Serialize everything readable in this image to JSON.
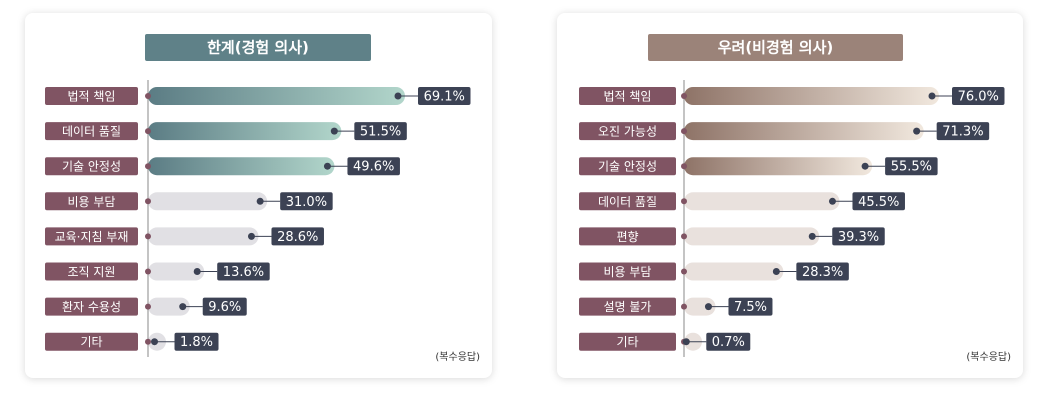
{
  "chart_data": [
    {
      "type": "bar",
      "orientation": "horizontal",
      "title": "한계(경험 의사)",
      "title_color": "#5f8188",
      "categories": [
        "법적 책임",
        "데이터 품질",
        "기술 안정성",
        "비용 부담",
        "교육·지침 부재",
        "조직 지원",
        "환자 수용성",
        "기타"
      ],
      "values": [
        69.1,
        51.5,
        49.6,
        31.0,
        28.6,
        13.6,
        9.6,
        1.8
      ],
      "value_labels": [
        "69.1%",
        "51.5%",
        "49.6%",
        "31.0%",
        "28.6%",
        "13.6%",
        "9.6%",
        "1.8%"
      ],
      "highlight": [
        true,
        true,
        true,
        false,
        false,
        false,
        false,
        false
      ],
      "highlight_colors": [
        "#5b7c84",
        "#b2d6cb"
      ],
      "color": "#e1e0e4",
      "label_color": "#805463",
      "note": "(복수응답)"
    },
    {
      "type": "bar",
      "orientation": "horizontal",
      "title": "우려(비경험 의사)",
      "title_color": "#9b8379",
      "categories": [
        "법적 책임",
        "오진 가능성",
        "기술 안정성",
        "데이터 품질",
        "편향",
        "비용 부담",
        "설명 불가",
        "기타"
      ],
      "values": [
        76.0,
        71.3,
        55.5,
        45.5,
        39.3,
        28.3,
        7.5,
        0.7
      ],
      "value_labels": [
        "76.0%",
        "71.3%",
        "55.5%",
        "45.5%",
        "39.3%",
        "28.3%",
        "7.5%",
        "0.7%"
      ],
      "highlight": [
        true,
        true,
        true,
        false,
        false,
        false,
        false,
        false
      ],
      "highlight_colors": [
        "#8e7367",
        "#f1e8de"
      ],
      "color": "#e9e1dd",
      "label_color": "#805463",
      "note": "(복수응답)"
    }
  ]
}
